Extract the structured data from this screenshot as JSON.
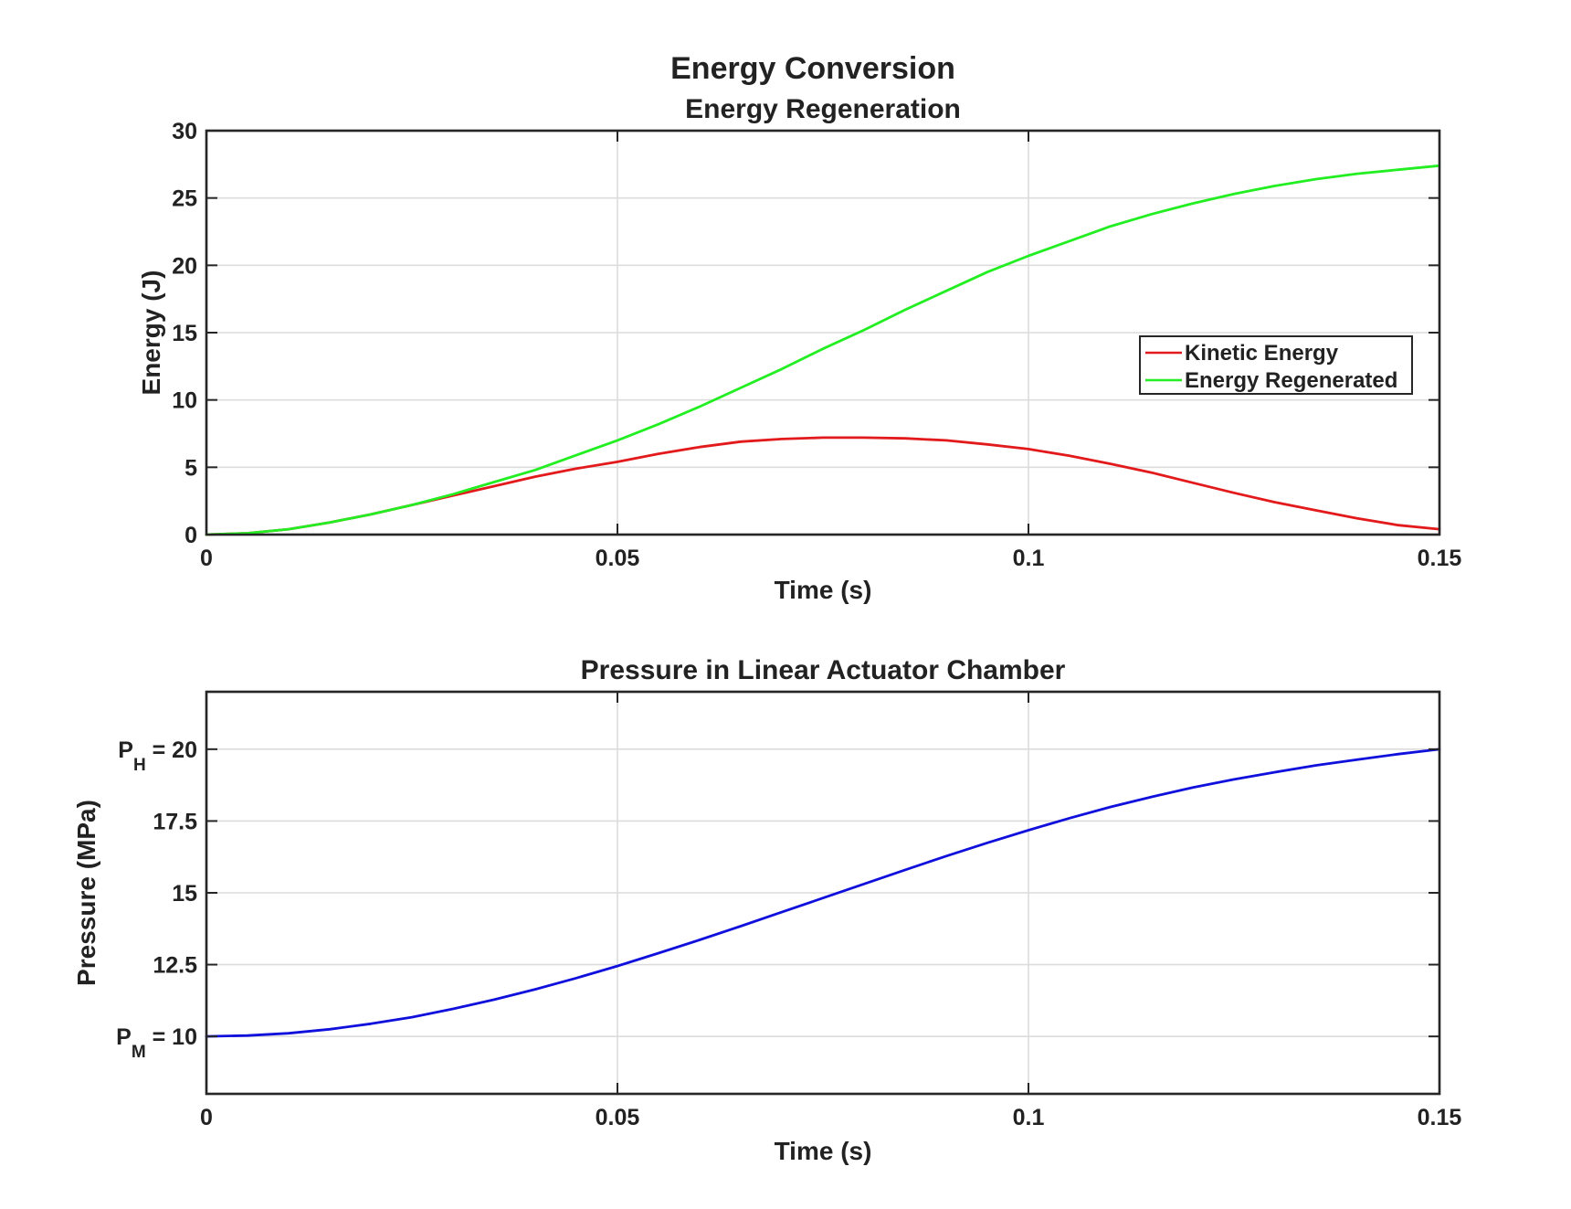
{
  "figure_title": "Energy Conversion",
  "chart_data": [
    {
      "type": "line",
      "title": "Energy Regeneration",
      "xlabel": "Time (s)",
      "ylabel": "Energy (J)",
      "xlim": [
        0,
        0.15
      ],
      "ylim": [
        0,
        30
      ],
      "xticks": [
        0,
        0.05,
        0.1,
        0.15
      ],
      "xtick_labels": [
        "0",
        "0.05",
        "0.1",
        "0.15"
      ],
      "yticks": [
        0,
        5,
        10,
        15,
        20,
        25,
        30
      ],
      "ytick_labels": [
        {
          "main": "0"
        },
        {
          "main": "5"
        },
        {
          "main": "10"
        },
        {
          "main": "15"
        },
        {
          "main": "20"
        },
        {
          "main": "25"
        },
        {
          "main": "30"
        }
      ],
      "grid": true,
      "legend": "right",
      "series": [
        {
          "name": "Kinetic Energy",
          "color": "#e31a1c",
          "x": [
            0,
            0.005,
            0.01,
            0.015,
            0.02,
            0.025,
            0.03,
            0.035,
            0.04,
            0.045,
            0.05,
            0.055,
            0.06,
            0.065,
            0.07,
            0.075,
            0.08,
            0.085,
            0.09,
            0.095,
            0.1,
            0.105,
            0.11,
            0.115,
            0.12,
            0.125,
            0.13,
            0.135,
            0.14,
            0.145,
            0.15
          ],
          "y": [
            0,
            0.1,
            0.4,
            0.9,
            1.5,
            2.2,
            2.9,
            3.6,
            4.3,
            4.9,
            5.4,
            6.0,
            6.5,
            6.9,
            7.1,
            7.2,
            7.2,
            7.15,
            7.0,
            6.7,
            6.35,
            5.85,
            5.25,
            4.6,
            3.85,
            3.1,
            2.4,
            1.8,
            1.2,
            0.7,
            0.4
          ]
        },
        {
          "name": "Energy Regenerated",
          "color": "#22ee22",
          "x": [
            0,
            0.005,
            0.01,
            0.015,
            0.02,
            0.025,
            0.03,
            0.035,
            0.04,
            0.045,
            0.05,
            0.055,
            0.06,
            0.065,
            0.07,
            0.075,
            0.08,
            0.085,
            0.09,
            0.095,
            0.1,
            0.105,
            0.11,
            0.115,
            0.12,
            0.125,
            0.13,
            0.135,
            0.14,
            0.145,
            0.15
          ],
          "y": [
            0,
            0.1,
            0.4,
            0.9,
            1.5,
            2.2,
            3.0,
            3.9,
            4.8,
            5.9,
            7.0,
            8.2,
            9.5,
            10.9,
            12.3,
            13.8,
            15.2,
            16.7,
            18.1,
            19.5,
            20.7,
            21.8,
            22.9,
            23.8,
            24.6,
            25.3,
            25.9,
            26.4,
            26.8,
            27.1,
            27.4
          ]
        }
      ]
    },
    {
      "type": "line",
      "title": "Pressure in Linear Actuator Chamber",
      "xlabel": "Time (s)",
      "ylabel": "Pressure (MPa)",
      "xlim": [
        0,
        0.15
      ],
      "ylim": [
        8,
        22
      ],
      "xticks": [
        0,
        0.05,
        0.1,
        0.15
      ],
      "xtick_labels": [
        "0",
        "0.05",
        "0.1",
        "0.15"
      ],
      "yticks": [
        10,
        12.5,
        15,
        17.5,
        20
      ],
      "ytick_labels": [
        {
          "main": "P",
          "sub": "M",
          "rest": " = 10"
        },
        {
          "main": "12.5"
        },
        {
          "main": "15"
        },
        {
          "main": "17.5"
        },
        {
          "main": "P",
          "sub": "H",
          "rest": " = 20"
        }
      ],
      "grid": true,
      "series": [
        {
          "name": "",
          "color": "#1010dd",
          "x": [
            0,
            0.005,
            0.01,
            0.015,
            0.02,
            0.025,
            0.03,
            0.035,
            0.04,
            0.045,
            0.05,
            0.055,
            0.06,
            0.065,
            0.07,
            0.075,
            0.08,
            0.085,
            0.09,
            0.095,
            0.1,
            0.105,
            0.11,
            0.115,
            0.12,
            0.125,
            0.13,
            0.135,
            0.14,
            0.145,
            0.15
          ],
          "y": [
            10.0,
            10.03,
            10.11,
            10.25,
            10.44,
            10.67,
            10.96,
            11.28,
            11.64,
            12.03,
            12.45,
            12.9,
            13.36,
            13.84,
            14.33,
            14.82,
            15.31,
            15.8,
            16.28,
            16.74,
            17.18,
            17.6,
            17.99,
            18.34,
            18.67,
            18.95,
            19.2,
            19.44,
            19.64,
            19.83,
            20.0
          ]
        }
      ]
    }
  ]
}
